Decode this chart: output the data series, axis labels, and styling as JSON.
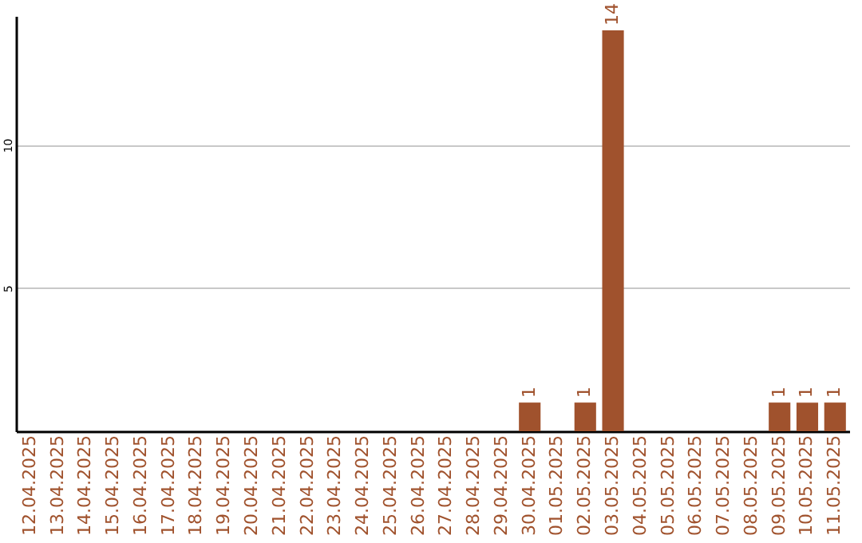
{
  "chart_data": {
    "type": "bar",
    "categories": [
      "12.04.2025",
      "13.04.2025",
      "14.04.2025",
      "15.04.2025",
      "16.04.2025",
      "17.04.2025",
      "18.04.2025",
      "19.04.2025",
      "20.04.2025",
      "21.04.2025",
      "22.04.2025",
      "23.04.2025",
      "24.04.2025",
      "25.04.2025",
      "26.04.2025",
      "27.04.2025",
      "28.04.2025",
      "29.04.2025",
      "30.04.2025",
      "01.05.2025",
      "02.05.2025",
      "03.05.2025",
      "04.05.2025",
      "05.05.2025",
      "06.05.2025",
      "07.05.2025",
      "08.05.2025",
      "09.05.2025",
      "10.05.2025",
      "11.05.2025"
    ],
    "values": [
      0,
      0,
      0,
      0,
      0,
      0,
      0,
      0,
      0,
      0,
      0,
      0,
      0,
      0,
      0,
      0,
      0,
      0,
      1,
      0,
      1,
      14,
      0,
      0,
      0,
      0,
      0,
      1,
      1,
      1
    ],
    "value_labels": [
      null,
      null,
      null,
      null,
      null,
      null,
      null,
      null,
      null,
      null,
      null,
      null,
      null,
      null,
      null,
      null,
      null,
      null,
      "1",
      null,
      "1",
      "14",
      null,
      null,
      null,
      null,
      null,
      "1",
      "1",
      "1"
    ],
    "color": "#a0522d",
    "ylim": [
      0,
      14.5
    ],
    "yticks": [
      5,
      10
    ],
    "grid": "y"
  }
}
